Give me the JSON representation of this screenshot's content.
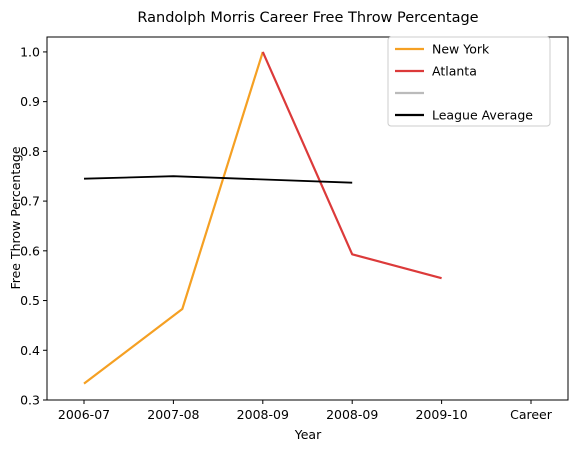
{
  "chart_data": {
    "type": "line",
    "title": "Randolph Morris Career Free Throw Percentage",
    "xlabel": "Year",
    "ylabel": "Free Throw Percentage",
    "x_ticks": [
      "2006-07",
      "2007-08",
      "2008-09",
      "2008-09",
      "2009-10",
      "Career"
    ],
    "xlim": [
      0,
      5
    ],
    "ylim": [
      0.3,
      1.03
    ],
    "y_ticks": [
      0.3,
      0.4,
      0.5,
      0.6,
      0.7,
      0.8,
      0.9,
      1.0
    ],
    "grid": false,
    "legend_position": "top-right",
    "series": [
      {
        "name": "New York",
        "color": "#f5a023",
        "points": [
          [
            0,
            0.333
          ],
          [
            1.1,
            0.483
          ],
          [
            2.0,
            1.0
          ]
        ]
      },
      {
        "name": "Atlanta",
        "color": "#dc3a3a",
        "points": [
          [
            2.0,
            1.0
          ],
          [
            3.0,
            0.593
          ],
          [
            4.0,
            0.545
          ]
        ]
      },
      {
        "name": "",
        "color": "#bbbbbb",
        "points": []
      },
      {
        "name": "League Average",
        "color": "#000000",
        "points": [
          [
            0,
            0.745
          ],
          [
            1.0,
            0.75
          ],
          [
            3.0,
            0.737
          ]
        ]
      }
    ]
  }
}
